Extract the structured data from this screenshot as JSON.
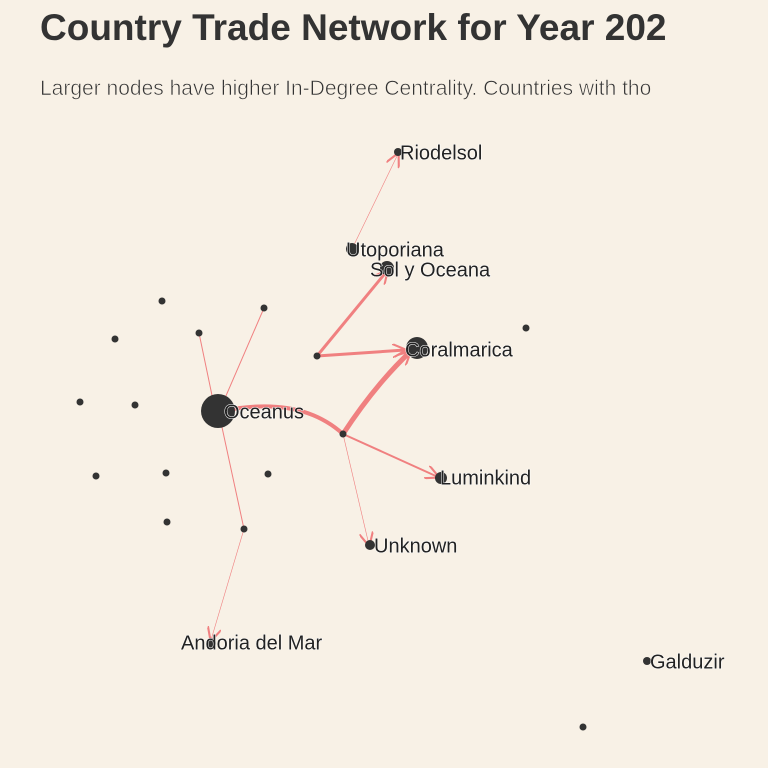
{
  "header": {
    "title": "Country Trade Network for Year 202",
    "subtitle": "Larger nodes have higher In-Degree Centrality. Countries with tho"
  },
  "nodes": [
    {
      "label": "Riodelsol"
    },
    {
      "label": "Utoporiana"
    },
    {
      "label": "Sol y Oceana"
    },
    {
      "label": "Coralmarica"
    },
    {
      "label": "Oceanus"
    },
    {
      "label": "Luminkind"
    },
    {
      "label": "Unknown"
    },
    {
      "label": "Andoria del Mar"
    },
    {
      "label": "Galduzir"
    }
  ]
}
